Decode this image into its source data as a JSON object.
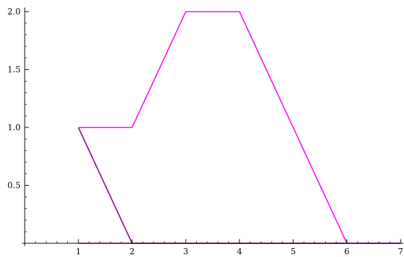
{
  "chart_data": {
    "type": "line",
    "title": "",
    "xlabel": "",
    "ylabel": "",
    "xlim": [
      0,
      7
    ],
    "ylim": [
      0,
      2
    ],
    "grid": false,
    "legend": "none",
    "x_ticks": [
      {
        "value": 1,
        "label": "1"
      },
      {
        "value": 2,
        "label": "2"
      },
      {
        "value": 3,
        "label": "3"
      },
      {
        "value": 4,
        "label": "4"
      },
      {
        "value": 5,
        "label": "5"
      },
      {
        "value": 6,
        "label": "6"
      },
      {
        "value": 7,
        "label": "7"
      }
    ],
    "y_ticks": [
      {
        "value": 0.5,
        "label": "0.5"
      },
      {
        "value": 1.0,
        "label": "1.0"
      },
      {
        "value": 1.5,
        "label": "1.5"
      },
      {
        "value": 2.0,
        "label": "2.0"
      }
    ],
    "series": [
      {
        "color": "#ff00ff",
        "points": [
          [
            1,
            1
          ],
          [
            2,
            1
          ],
          [
            3,
            2
          ],
          [
            4,
            2
          ],
          [
            5,
            1
          ],
          [
            6,
            0
          ],
          [
            7,
            0
          ]
        ]
      },
      {
        "color": "#800080",
        "points": [
          [
            1,
            1
          ],
          [
            2,
            0
          ],
          [
            3,
            0
          ],
          [
            4,
            0
          ],
          [
            5,
            0
          ],
          [
            6,
            0
          ],
          [
            7,
            0
          ]
        ]
      },
      {
        "color": "#b22222",
        "points": [
          [
            1,
            0
          ],
          [
            2,
            0
          ],
          [
            3,
            0
          ],
          [
            4,
            0
          ],
          [
            5,
            0
          ],
          [
            6,
            0
          ],
          [
            7,
            0
          ]
        ]
      },
      {
        "color": "#ff8c00",
        "points": [
          [
            1,
            0
          ],
          [
            2,
            0
          ],
          [
            3,
            0
          ],
          [
            4,
            0
          ],
          [
            5,
            0
          ],
          [
            6,
            0
          ],
          [
            7,
            0
          ]
        ]
      }
    ]
  }
}
